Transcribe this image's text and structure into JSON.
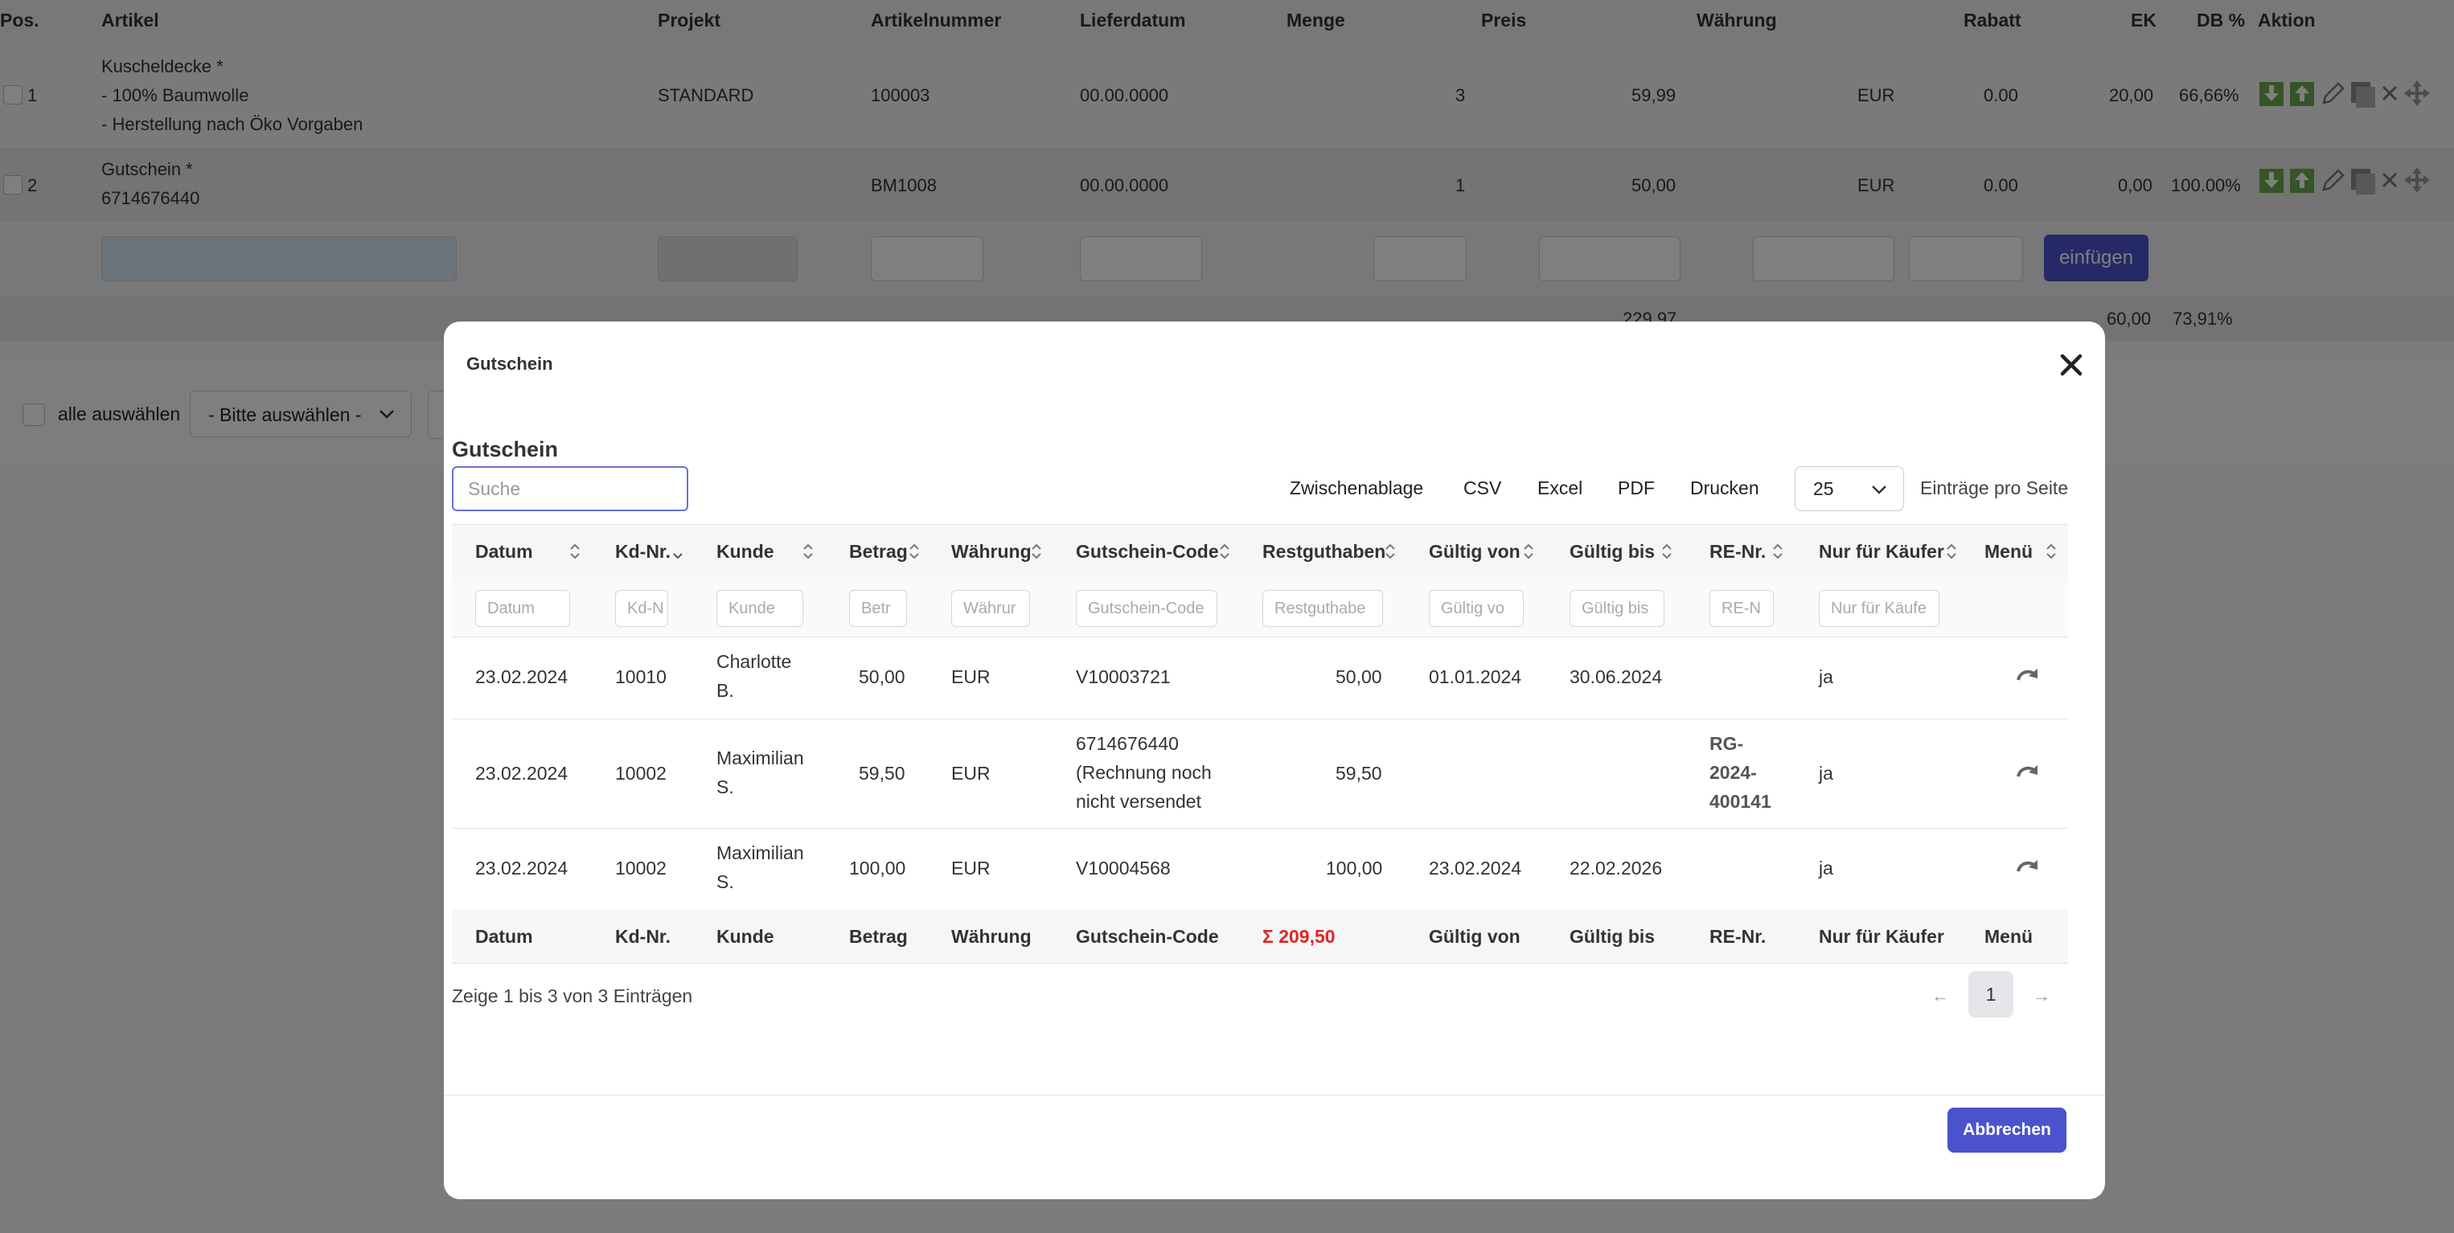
{
  "order": {
    "headers": {
      "pos": "Pos.",
      "artikel": "Artikel",
      "projekt": "Projekt",
      "artikelnummer": "Artikelnummer",
      "lieferdatum": "Lieferdatum",
      "menge": "Menge",
      "preis": "Preis",
      "waehrung": "Währung",
      "rabatt": "Rabatt",
      "ek": "EK",
      "db": "DB %",
      "aktion": "Aktion"
    },
    "rows": [
      {
        "pos": "1",
        "artikel_l1": "Kuscheldecke *",
        "artikel_l2": "- 100% Baumwolle",
        "artikel_l3": "- Herstellung nach Öko Vorgaben",
        "projekt": "STANDARD",
        "artikelnummer": "100003",
        "lieferdatum": "00.00.0000",
        "menge": "3",
        "preis": "59,99",
        "waehrung": "EUR",
        "rabatt": "0.00",
        "ek": "20,00",
        "db": "66,66%"
      },
      {
        "pos": "2",
        "artikel_l1": "Gutschein *",
        "artikel_l2": "6714676440",
        "projekt": "",
        "artikelnummer": "BM1008",
        "lieferdatum": "00.00.0000",
        "menge": "1",
        "preis": "50,00",
        "waehrung": "EUR",
        "rabatt": "0.00",
        "ek": "0,00",
        "db": "100.00%"
      }
    ],
    "insert_button": "einfügen",
    "sum": {
      "preis": "229,97",
      "ek": "60,00",
      "db": "73,91%"
    }
  },
  "bulk": {
    "select_all": "alle auswählen",
    "select_placeholder": "- Bitte auswählen -"
  },
  "modal": {
    "title": "Gutschein",
    "section_title": "Gutschein",
    "search_placeholder": "Suche",
    "tools": [
      "Zwischenablage",
      "CSV",
      "Excel",
      "PDF",
      "Drucken"
    ],
    "page_size": "25",
    "per_page_label": "Einträge pro Seite",
    "columns": [
      "Datum",
      "Kd-Nr.",
      "Kunde",
      "Betrag",
      "Währung",
      "Gutschein-Code",
      "Restguthaben",
      "Gültig von",
      "Gültig bis",
      "RE-Nr.",
      "Nur für Käufer",
      "Menü"
    ],
    "filters": [
      "Datum",
      "Kd-N",
      "Kunde",
      "Betr",
      "Währur",
      "Gutschein-Code",
      "Restguthabe",
      "Gültig vo",
      "Gültig bis",
      "RE-N",
      "Nur für Käufe"
    ],
    "rows": [
      {
        "datum": "23.02.2024",
        "kdnr": "10010",
        "kunde_l1": "Charlotte",
        "kunde_l2": "B.",
        "betrag": "50,00",
        "waehrung": "EUR",
        "code_l1": "V10003721",
        "code_l2": "",
        "code_l3": "",
        "rest": "50,00",
        "von": "01.01.2024",
        "bis": "30.06.2024",
        "re_l1": "",
        "re_l2": "",
        "re_l3": "",
        "nur": "ja"
      },
      {
        "datum": "23.02.2024",
        "kdnr": "10002",
        "kunde_l1": "Maximilian",
        "kunde_l2": "S.",
        "betrag": "59,50",
        "waehrung": "EUR",
        "code_l1": "6714676440",
        "code_l2": "(Rechnung noch",
        "code_l3": "nicht versendet",
        "rest": "59,50",
        "von": "",
        "bis": "",
        "re_l1": "RG-",
        "re_l2": "2024-",
        "re_l3": "400141",
        "nur": "ja"
      },
      {
        "datum": "23.02.2024",
        "kdnr": "10002",
        "kunde_l1": "Maximilian",
        "kunde_l2": "S.",
        "betrag": "100,00",
        "waehrung": "EUR",
        "code_l1": "V10004568",
        "code_l2": "",
        "code_l3": "",
        "rest": "100,00",
        "von": "23.02.2024",
        "bis": "22.02.2026",
        "re_l1": "",
        "re_l2": "",
        "re_l3": "",
        "nur": "ja"
      }
    ],
    "footer_sum": "Σ 209,50",
    "info": "Zeige 1 bis 3 von 3 Einträgen",
    "pager": {
      "prev": "←",
      "page": "1",
      "next": "→"
    },
    "cancel_button": "Abbrechen",
    "close_symbol": "✕"
  },
  "colors": {
    "accent": "#4a53cc",
    "sum_red": "#e02424",
    "action_green": "#6aa84f"
  }
}
